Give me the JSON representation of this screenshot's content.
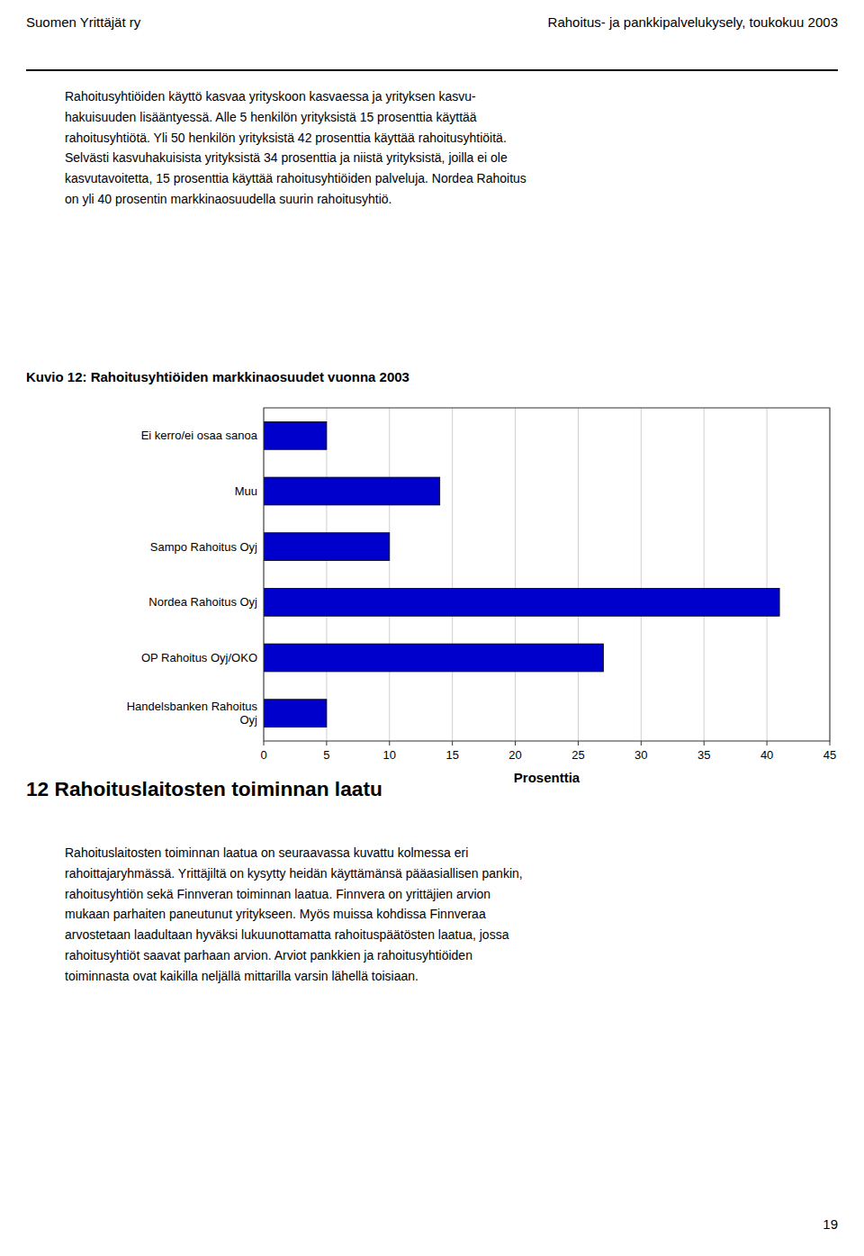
{
  "header_left": "Suomen Yrittäjät ry",
  "header_right": "Rahoitus- ja pankkipalvelukysely, toukokuu 2003",
  "intro_text_lines": [
    "Rahoitusyhtiöiden käyttö kasvaa yrityskoon kasvaessa ja yrityksen kasvu-",
    "hakuisuuden lisääntyessä. Alle 5 henkilön yrityksistä 15 prosenttia käyttää",
    "rahoitusyhtiötä. Yli 50 henkilön yrityksistä 42 prosenttia käyttää rahoitusyhtiöitä.",
    "Selvästi kasvuhakuisista yrityksistä 34 prosenttia ja niistä yrityksistä, joilla ei ole",
    "kasvutavoitetta, 15 prosenttia käyttää rahoitusyhtiöiden palveluja. Nordea Rahoitus",
    "on yli 40 prosentin markkinaosuudella suurin rahoitusyhtiö."
  ],
  "chart_data": {
    "type": "bar",
    "orientation": "horizontal",
    "title": "Kuvio 12: Rahoitusyhtiöiden markkinaosuudet vuonna 2003",
    "categories": [
      "Ei kerro/ei osaa sanoa",
      "Muu",
      "Sampo Rahoitus Oyj",
      "Nordea Rahoitus Oyj",
      "OP Rahoitus Oyj/OKO",
      "Handelsbanken Rahoitus\nOyj"
    ],
    "values": [
      5,
      14,
      10,
      41,
      27,
      5
    ],
    "color": "#0000cc",
    "xlim": [
      0,
      45
    ],
    "xticks": [
      0,
      5,
      10,
      15,
      20,
      25,
      30,
      35,
      40,
      45
    ],
    "xlabel": "Prosenttia",
    "grid": true
  },
  "section_title": "12 Rahoituslaitosten toiminnan laatu",
  "section_text_lines": [
    "Rahoituslaitosten toiminnan laatua on seuraavassa kuvattu kolmessa eri",
    "rahoittajaryhmässä. Yrittäjiltä on kysytty heidän käyttämänsä pääasiallisen pankin,",
    "rahoitusyhtiön sekä Finnveran toiminnan laatua. Finnvera on yrittäjien arvion",
    "mukaan parhaiten paneutunut yritykseen. Myös muissa kohdissa Finnveraa",
    "arvostetaan laadultaan hyväksi lukuunottamatta rahoituspäätösten laatua, jossa",
    "rahoitusyhtiöt saavat parhaan arvion. Arviot pankkien ja rahoitusyhtiöiden",
    "toiminnasta ovat kaikilla neljällä mittarilla varsin lähellä toisiaan."
  ],
  "page_number": "19"
}
